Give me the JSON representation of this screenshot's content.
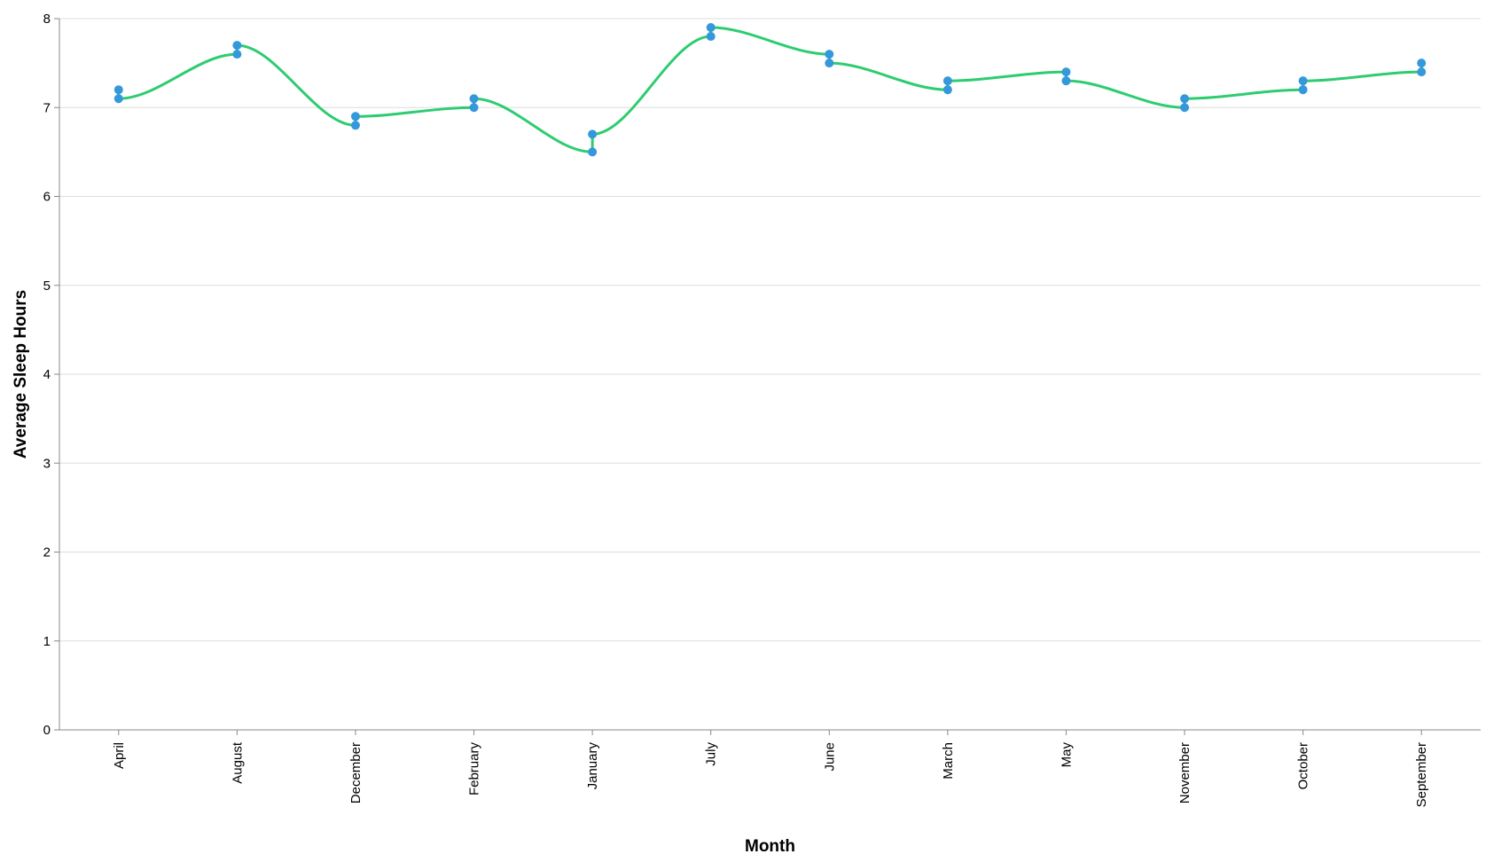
{
  "chart_data": {
    "type": "line",
    "title": "",
    "xlabel": "Month",
    "ylabel": "Average Sleep Hours",
    "categories": [
      "April",
      "August",
      "December",
      "February",
      "January",
      "July",
      "June",
      "March",
      "May",
      "November",
      "October",
      "September"
    ],
    "ylim": [
      0,
      8
    ],
    "yticks": [
      "0",
      "1",
      "2",
      "3",
      "4",
      "5",
      "6",
      "7",
      "8"
    ],
    "grid": true,
    "line_color": "#2ecc71",
    "point_color": "#3498db",
    "points": [
      {
        "month": "April",
        "value": 7.2
      },
      {
        "month": "April",
        "value": 7.1
      },
      {
        "month": "August",
        "value": 7.6
      },
      {
        "month": "August",
        "value": 7.7
      },
      {
        "month": "December",
        "value": 6.8
      },
      {
        "month": "December",
        "value": 6.9
      },
      {
        "month": "February",
        "value": 7.0
      },
      {
        "month": "February",
        "value": 7.1
      },
      {
        "month": "January",
        "value": 6.5
      },
      {
        "month": "January",
        "value": 6.7
      },
      {
        "month": "July",
        "value": 7.8
      },
      {
        "month": "July",
        "value": 7.9
      },
      {
        "month": "June",
        "value": 7.6
      },
      {
        "month": "June",
        "value": 7.5
      },
      {
        "month": "March",
        "value": 7.2
      },
      {
        "month": "March",
        "value": 7.3
      },
      {
        "month": "May",
        "value": 7.4
      },
      {
        "month": "May",
        "value": 7.3
      },
      {
        "month": "November",
        "value": 7.0
      },
      {
        "month": "November",
        "value": 7.1
      },
      {
        "month": "October",
        "value": 7.2
      },
      {
        "month": "October",
        "value": 7.3
      },
      {
        "month": "September",
        "value": 7.4
      },
      {
        "month": "September",
        "value": 7.5
      }
    ]
  }
}
